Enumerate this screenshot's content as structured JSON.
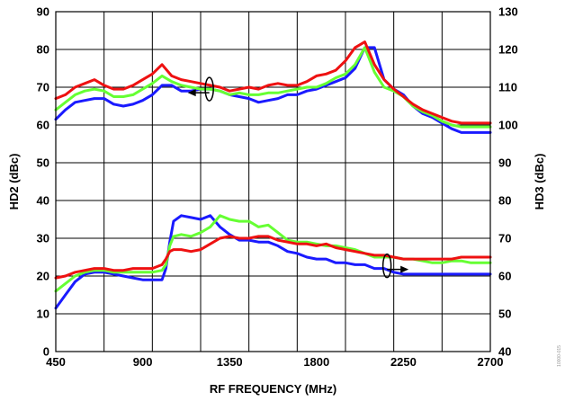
{
  "chart_data": {
    "type": "line",
    "xlabel": "RF FREQUENCY (MHz)",
    "ylabel_left": "HD2 (dBc)",
    "ylabel_right": "HD3 (dBc)",
    "xlim": [
      450,
      2700
    ],
    "ylim_left": [
      0,
      90
    ],
    "ylim_right": [
      40,
      130
    ],
    "x_ticks": [
      450,
      900,
      1350,
      1800,
      2250,
      2700
    ],
    "y_ticks_left": [
      0,
      10,
      20,
      30,
      40,
      50,
      60,
      70,
      80,
      90
    ],
    "y_ticks_right": [
      40,
      50,
      60,
      70,
      80,
      90,
      100,
      110,
      120,
      130
    ],
    "grid": true,
    "corner_note": "10000-015",
    "colors": {
      "blue": "#1a1aff",
      "green": "#66ff33",
      "red": "#ee1111"
    },
    "series": [
      {
        "group": "HD2",
        "axis": "left",
        "color": "blue",
        "x": [
          450,
          500,
          550,
          600,
          650,
          700,
          750,
          800,
          850,
          900,
          950,
          1000,
          1050,
          1100,
          1150,
          1200,
          1250,
          1300,
          1350,
          1400,
          1450,
          1500,
          1550,
          1600,
          1650,
          1700,
          1750,
          1800,
          1850,
          1900,
          1950,
          2000,
          2050,
          2100,
          2150,
          2200,
          2250,
          2300,
          2350,
          2400,
          2450,
          2500,
          2550,
          2600,
          2650,
          2700
        ],
        "y": [
          61.5,
          64,
          66,
          66.5,
          67,
          67,
          65.5,
          65,
          65.5,
          66.5,
          68,
          70.5,
          70.5,
          69,
          69,
          69.5,
          69.5,
          69,
          68,
          67.5,
          67,
          66,
          66.5,
          67,
          68,
          68,
          69,
          69.5,
          70.5,
          71.5,
          72.5,
          75,
          80.5,
          80.5,
          72,
          69.5,
          68,
          65,
          63,
          62,
          60.5,
          59,
          58,
          58,
          58,
          58
        ]
      },
      {
        "group": "HD2",
        "axis": "left",
        "color": "green",
        "x": [
          450,
          500,
          550,
          600,
          650,
          700,
          750,
          800,
          850,
          900,
          950,
          1000,
          1050,
          1100,
          1150,
          1200,
          1250,
          1300,
          1350,
          1400,
          1450,
          1500,
          1550,
          1600,
          1650,
          1700,
          1750,
          1800,
          1850,
          1900,
          1950,
          2000,
          2050,
          2100,
          2150,
          2200,
          2250,
          2300,
          2350,
          2400,
          2450,
          2500,
          2550,
          2600,
          2650,
          2700
        ],
        "y": [
          64,
          66,
          68,
          69,
          69.5,
          69,
          67.5,
          67.5,
          68,
          69.5,
          71,
          73,
          71.5,
          70.5,
          70,
          69.5,
          69.5,
          69,
          68,
          68.5,
          68,
          68,
          68.5,
          68.5,
          69,
          69.5,
          70,
          70,
          71,
          72.5,
          73.5,
          76,
          80.5,
          74,
          70,
          69,
          67.5,
          65,
          63.5,
          62.5,
          61,
          60,
          59.5,
          59.5,
          59.5,
          59.5
        ]
      },
      {
        "group": "HD2",
        "axis": "left",
        "color": "red",
        "x": [
          450,
          500,
          550,
          600,
          650,
          700,
          750,
          800,
          850,
          900,
          950,
          1000,
          1050,
          1100,
          1150,
          1200,
          1250,
          1300,
          1350,
          1400,
          1450,
          1500,
          1550,
          1600,
          1650,
          1700,
          1750,
          1800,
          1850,
          1900,
          1950,
          2000,
          2050,
          2100,
          2150,
          2200,
          2250,
          2300,
          2350,
          2400,
          2450,
          2500,
          2550,
          2600,
          2650,
          2700
        ],
        "y": [
          67,
          68,
          70,
          71,
          72,
          70.5,
          69.5,
          69.5,
          70.5,
          72,
          73.5,
          76,
          73,
          72,
          71.5,
          71,
          70.5,
          70,
          69,
          69.5,
          70,
          69.5,
          70.5,
          71,
          70.5,
          70.5,
          71.5,
          73,
          73.5,
          74.5,
          77,
          80.5,
          82,
          76,
          72,
          69.5,
          67.5,
          65.5,
          64,
          63,
          62,
          61,
          60.5,
          60.5,
          60.5,
          60.5
        ]
      },
      {
        "group": "HD3",
        "axis": "right",
        "color": "blue",
        "x": [
          450,
          500,
          550,
          600,
          650,
          700,
          750,
          800,
          850,
          900,
          950,
          1000,
          1020,
          1040,
          1060,
          1100,
          1150,
          1200,
          1250,
          1300,
          1350,
          1400,
          1450,
          1500,
          1550,
          1600,
          1650,
          1700,
          1750,
          1800,
          1850,
          1900,
          1950,
          2000,
          2050,
          2100,
          2150,
          2200,
          2250,
          2300,
          2350,
          2400,
          2450,
          2500,
          2550,
          2600,
          2650,
          2700
        ],
        "y": [
          51.5,
          55,
          58.5,
          60.5,
          61,
          61,
          60.5,
          60,
          59.5,
          59,
          59,
          59,
          62,
          69,
          74.5,
          76,
          75.5,
          75,
          76,
          73,
          71,
          69.5,
          69.5,
          69,
          69,
          68,
          66.5,
          66,
          65,
          64.5,
          64.5,
          63.5,
          63.5,
          63,
          63,
          62,
          62,
          61,
          60.5,
          60.5,
          60.5,
          60.5,
          60.5,
          60.5,
          60.5,
          60.5,
          60.5,
          60.5
        ]
      },
      {
        "group": "HD3",
        "axis": "right",
        "color": "green",
        "x": [
          450,
          500,
          550,
          600,
          650,
          700,
          750,
          800,
          850,
          900,
          950,
          1000,
          1020,
          1040,
          1060,
          1100,
          1150,
          1200,
          1250,
          1300,
          1350,
          1400,
          1450,
          1500,
          1550,
          1600,
          1650,
          1700,
          1750,
          1800,
          1850,
          1900,
          1950,
          2000,
          2050,
          2100,
          2150,
          2200,
          2250,
          2300,
          2350,
          2400,
          2450,
          2500,
          2550,
          2600,
          2650,
          2700
        ],
        "y": [
          56,
          58,
          60,
          61,
          61.5,
          61.5,
          61,
          61,
          61,
          61,
          61,
          61.5,
          63,
          68,
          70.5,
          71,
          70.5,
          71.5,
          73,
          76,
          75,
          74.5,
          74.5,
          73,
          73.5,
          71.5,
          69.5,
          69,
          69,
          68.5,
          68,
          68,
          67.5,
          67,
          66,
          65,
          65,
          65,
          64.5,
          64.5,
          64,
          63.5,
          63.5,
          64,
          64,
          63.5,
          63.5,
          63.5
        ]
      },
      {
        "group": "HD3",
        "axis": "right",
        "color": "red",
        "x": [
          450,
          500,
          550,
          600,
          650,
          700,
          750,
          800,
          850,
          900,
          950,
          1000,
          1020,
          1040,
          1060,
          1100,
          1150,
          1200,
          1250,
          1300,
          1350,
          1400,
          1450,
          1500,
          1550,
          1600,
          1650,
          1700,
          1750,
          1800,
          1850,
          1900,
          1950,
          2000,
          2050,
          2100,
          2150,
          2200,
          2250,
          2300,
          2350,
          2400,
          2450,
          2500,
          2550,
          2600,
          2650,
          2700
        ],
        "y": [
          59.5,
          60,
          61,
          61.5,
          62,
          62,
          61.5,
          61.5,
          62,
          62,
          62,
          63,
          64.5,
          66.5,
          67,
          67,
          66.5,
          67,
          68.5,
          70,
          70.5,
          70,
          70,
          70.5,
          70.5,
          69.5,
          69,
          68.5,
          68.5,
          68,
          68.5,
          67.5,
          67,
          66.5,
          66,
          65.5,
          65.5,
          65,
          64.5,
          64.5,
          64.5,
          64.5,
          64.5,
          64.5,
          65,
          65,
          65,
          65
        ]
      }
    ]
  }
}
